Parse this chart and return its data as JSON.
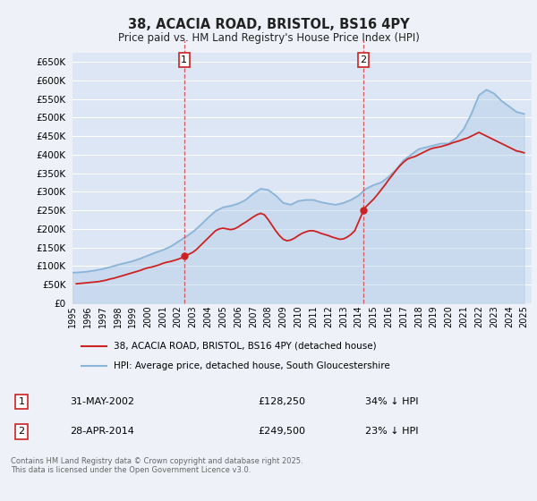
{
  "title": "38, ACACIA ROAD, BRISTOL, BS16 4PY",
  "subtitle": "Price paid vs. HM Land Registry's House Price Index (HPI)",
  "ylim": [
    0,
    675000
  ],
  "background_color": "#eef2f8",
  "plot_bg_color": "#dce6f5",
  "grid_color": "#ffffff",
  "hpi_color": "#8ab4d8",
  "hpi_fill_color": "#b8d0e8",
  "price_color": "#cc2222",
  "annotation1": {
    "label": "1",
    "date": "31-MAY-2002",
    "price": "£128,250",
    "hpi": "34% ↓ HPI"
  },
  "annotation2": {
    "label": "2",
    "date": "28-APR-2014",
    "price": "£249,500",
    "hpi": "23% ↓ HPI"
  },
  "legend_line1": "38, ACACIA ROAD, BRISTOL, BS16 4PY (detached house)",
  "legend_line2": "HPI: Average price, detached house, South Gloucestershire",
  "footer": "Contains HM Land Registry data © Crown copyright and database right 2025.\nThis data is licensed under the Open Government Licence v3.0.",
  "hpi_data_years": [
    1995,
    1995.5,
    1996,
    1996.5,
    1997,
    1997.5,
    1998,
    1998.5,
    1999,
    1999.5,
    2000,
    2000.5,
    2001,
    2001.5,
    2002,
    2002.5,
    2003,
    2003.5,
    2004,
    2004.5,
    2005,
    2005.5,
    2006,
    2006.5,
    2007,
    2007.5,
    2008,
    2008.5,
    2009,
    2009.5,
    2010,
    2010.5,
    2011,
    2011.5,
    2012,
    2012.5,
    2013,
    2013.5,
    2014,
    2014.5,
    2015,
    2015.5,
    2016,
    2016.5,
    2017,
    2017.5,
    2018,
    2018.5,
    2019,
    2019.5,
    2020,
    2020.5,
    2021,
    2021.5,
    2022,
    2022.5,
    2023,
    2023.5,
    2024,
    2024.5,
    2025
  ],
  "hpi_data_values": [
    82000,
    83000,
    85000,
    88000,
    92000,
    97000,
    103000,
    108000,
    113000,
    120000,
    128000,
    136000,
    143000,
    152000,
    165000,
    178000,
    192000,
    210000,
    230000,
    248000,
    258000,
    262000,
    268000,
    278000,
    295000,
    308000,
    305000,
    290000,
    270000,
    265000,
    275000,
    278000,
    278000,
    272000,
    268000,
    265000,
    270000,
    278000,
    290000,
    308000,
    318000,
    325000,
    340000,
    360000,
    385000,
    400000,
    415000,
    420000,
    425000,
    430000,
    430000,
    445000,
    470000,
    510000,
    560000,
    575000,
    565000,
    545000,
    530000,
    515000,
    510000
  ],
  "price_data_years": [
    1995.25,
    1995.5,
    1995.75,
    1996,
    1996.25,
    1996.5,
    1996.75,
    1997,
    1997.25,
    1997.5,
    1997.75,
    1998,
    1998.25,
    1998.5,
    1998.75,
    1999,
    1999.25,
    1999.5,
    1999.75,
    2000,
    2000.25,
    2000.5,
    2000.75,
    2001,
    2001.25,
    2001.5,
    2001.75,
    2002,
    2002.25,
    2002.5,
    2002.75,
    2003,
    2003.25,
    2003.5,
    2003.75,
    2004,
    2004.25,
    2004.5,
    2004.75,
    2005,
    2005.25,
    2005.5,
    2005.75,
    2006,
    2006.25,
    2006.5,
    2006.75,
    2007,
    2007.25,
    2007.5,
    2007.75,
    2008,
    2008.25,
    2008.5,
    2008.75,
    2009,
    2009.25,
    2009.5,
    2009.75,
    2010,
    2010.25,
    2010.5,
    2010.75,
    2011,
    2011.25,
    2011.5,
    2012,
    2012.25,
    2012.5,
    2012.75,
    2013,
    2013.25,
    2013.5,
    2013.75,
    2014.33,
    2014.5,
    2014.75,
    2015,
    2015.25,
    2015.5,
    2015.75,
    2016,
    2016.25,
    2016.5,
    2016.75,
    2017,
    2017.25,
    2017.5,
    2017.75,
    2018,
    2018.25,
    2018.5,
    2018.75,
    2019,
    2019.25,
    2019.5,
    2019.75,
    2020,
    2020.25,
    2020.5,
    2020.75,
    2021,
    2021.25,
    2021.5,
    2021.75,
    2022,
    2022.25,
    2022.5,
    2022.75,
    2023,
    2023.25,
    2023.5,
    2023.75,
    2024,
    2024.25,
    2024.5,
    2024.75,
    2025
  ],
  "price_data_values": [
    52000,
    53000,
    54000,
    55000,
    56000,
    57000,
    58000,
    60000,
    62000,
    65000,
    67000,
    70000,
    73000,
    76000,
    79000,
    82000,
    85000,
    88000,
    92000,
    95000,
    97000,
    100000,
    103000,
    107000,
    110000,
    112000,
    115000,
    118000,
    122000,
    128250,
    132000,
    137000,
    145000,
    155000,
    165000,
    175000,
    185000,
    195000,
    200000,
    202000,
    200000,
    198000,
    200000,
    205000,
    212000,
    218000,
    225000,
    232000,
    238000,
    242000,
    238000,
    225000,
    210000,
    195000,
    182000,
    172000,
    168000,
    170000,
    175000,
    182000,
    188000,
    192000,
    195000,
    195000,
    192000,
    188000,
    182000,
    178000,
    175000,
    172000,
    173000,
    178000,
    185000,
    195000,
    249500,
    260000,
    270000,
    280000,
    292000,
    305000,
    318000,
    332000,
    345000,
    358000,
    370000,
    380000,
    388000,
    392000,
    395000,
    400000,
    405000,
    410000,
    415000,
    418000,
    420000,
    422000,
    425000,
    428000,
    432000,
    435000,
    438000,
    442000,
    445000,
    450000,
    455000,
    460000,
    455000,
    450000,
    445000,
    440000,
    435000,
    430000,
    425000,
    420000,
    415000,
    410000,
    408000,
    405000
  ],
  "marker1_year": 2002.42,
  "marker2_year": 2014.33,
  "marker1_price": 128250,
  "marker2_price": 249500,
  "xmin": 1995,
  "xmax": 2025.5,
  "xticks": [
    1995,
    1996,
    1997,
    1998,
    1999,
    2000,
    2001,
    2002,
    2003,
    2004,
    2005,
    2006,
    2007,
    2008,
    2009,
    2010,
    2011,
    2012,
    2013,
    2014,
    2015,
    2016,
    2017,
    2018,
    2019,
    2020,
    2021,
    2022,
    2023,
    2024,
    2025
  ]
}
